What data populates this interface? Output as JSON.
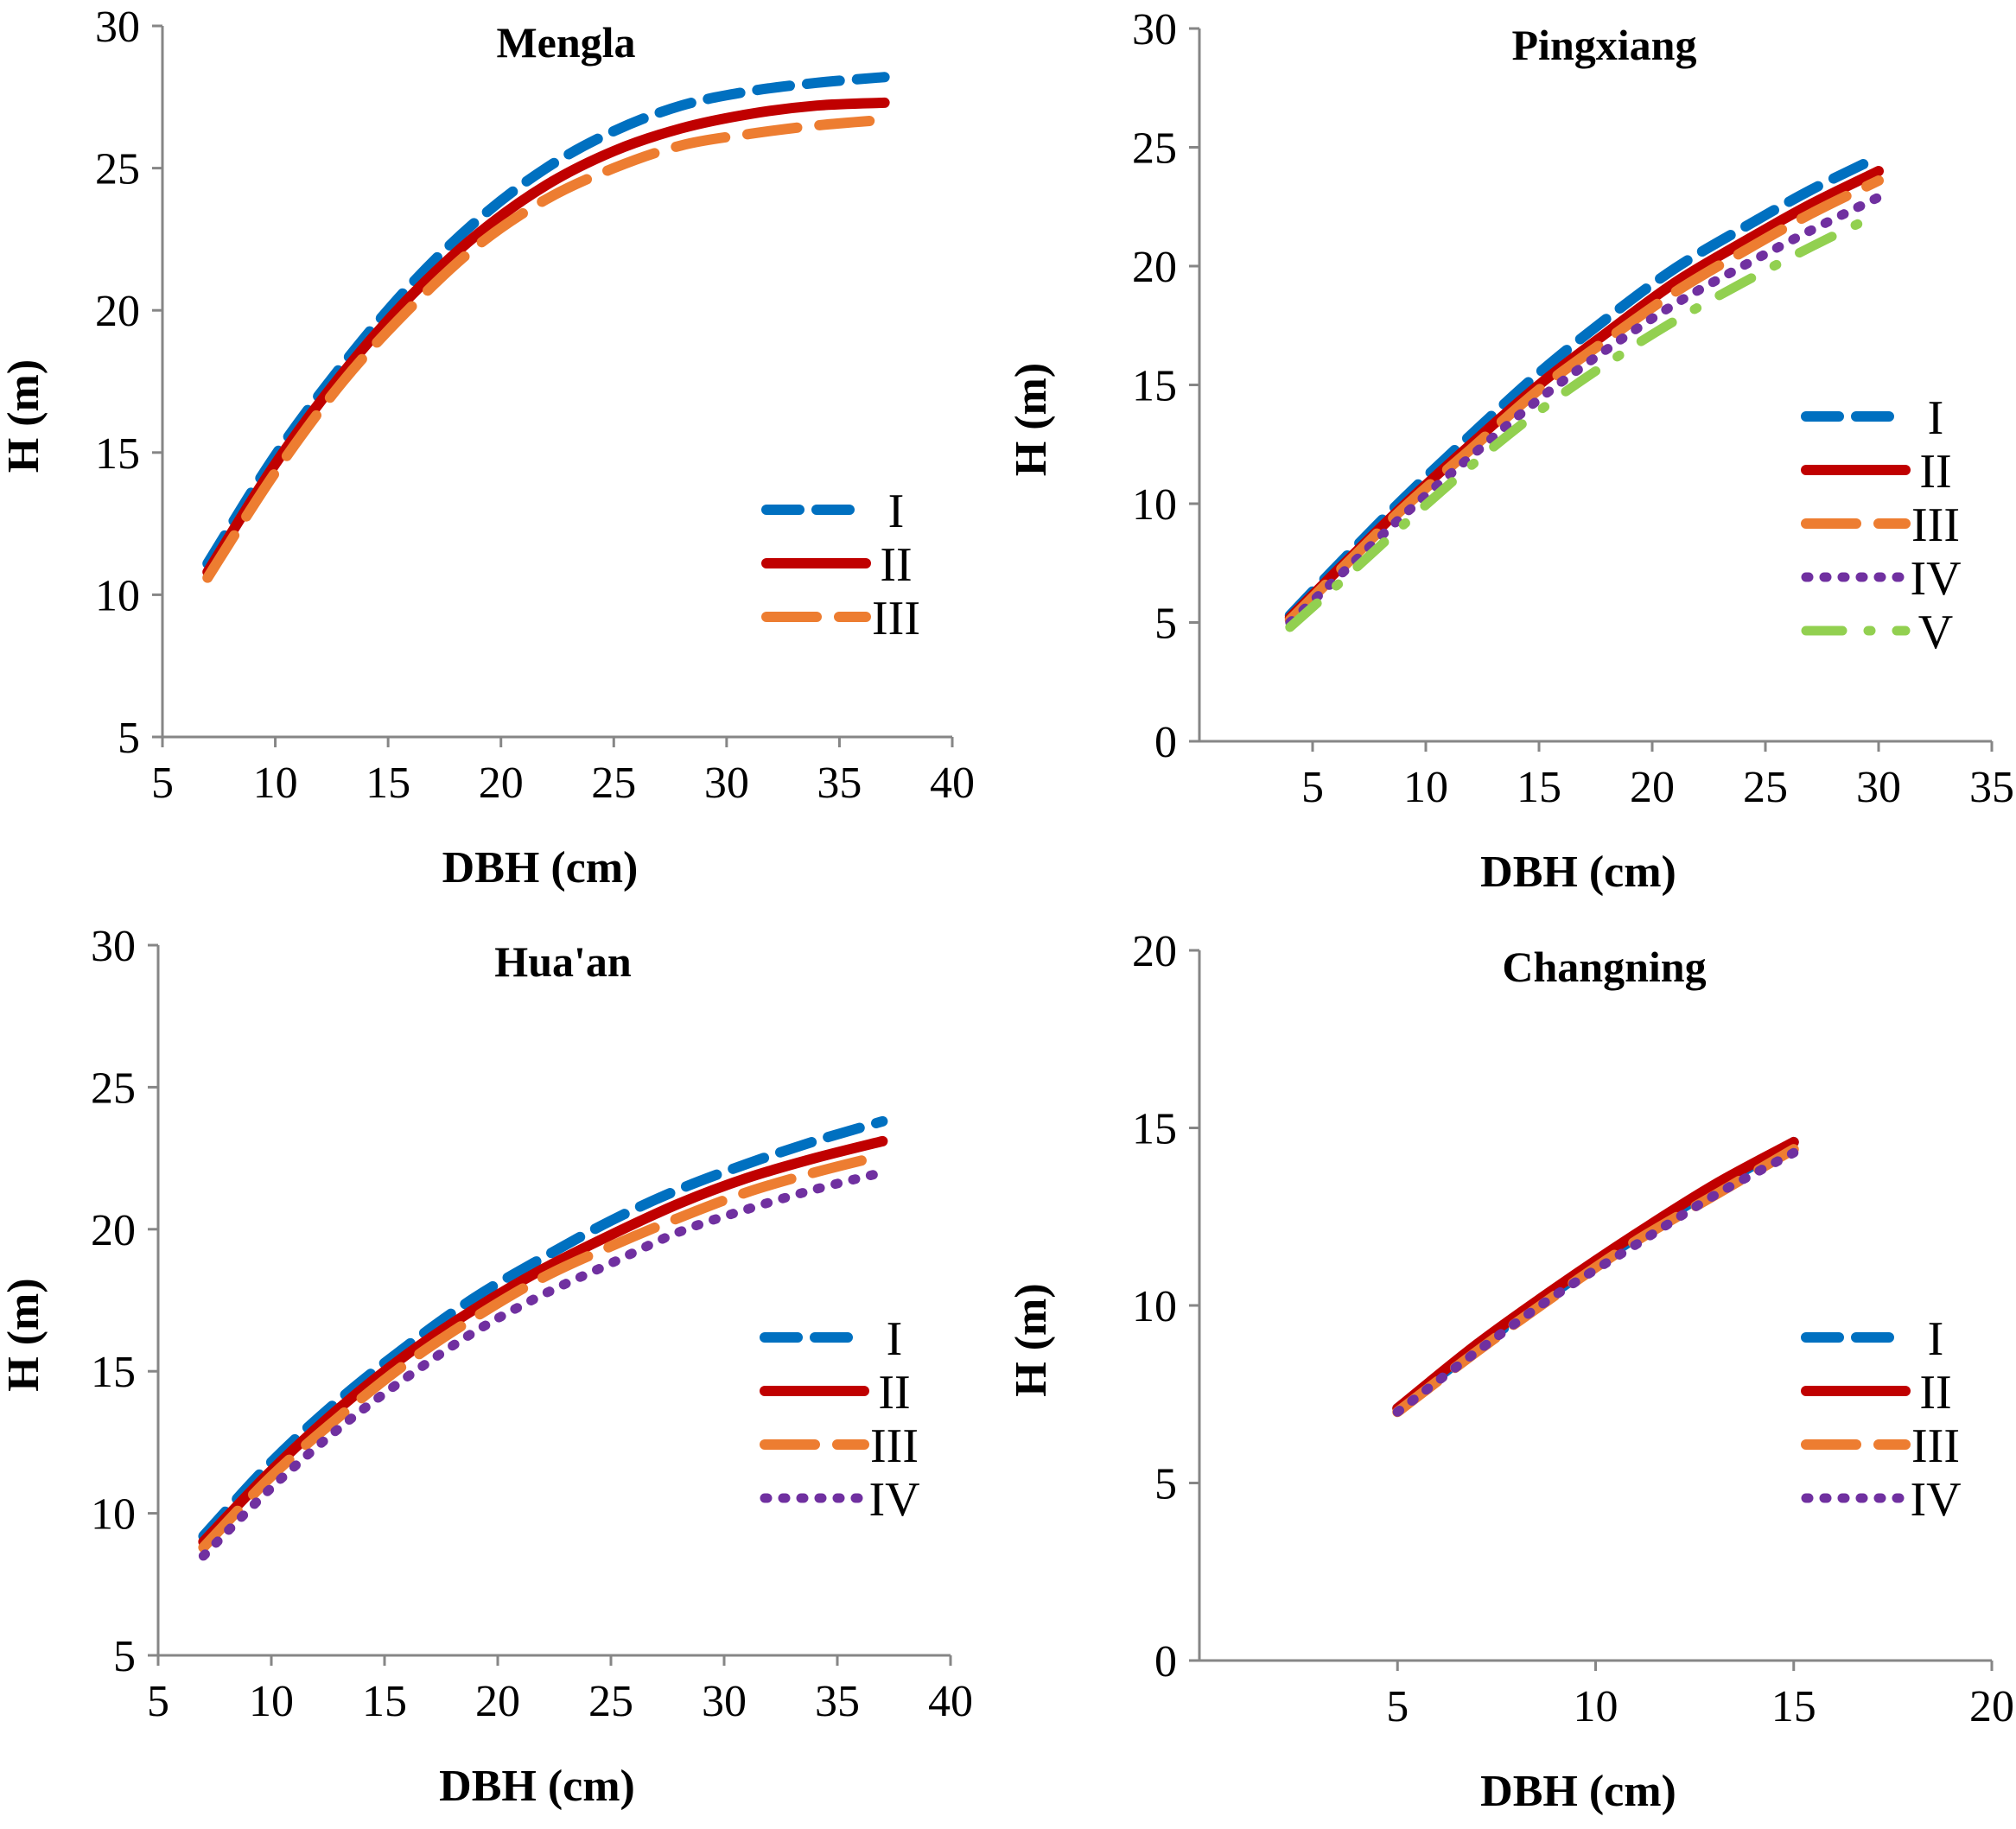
{
  "chart_data": [
    {
      "type": "line",
      "title": "Mengla",
      "xlabel": "DBH (cm)",
      "ylabel": "H (m)",
      "xlim": [
        5,
        40
      ],
      "ylim": [
        5,
        30
      ],
      "xticks": [
        5,
        10,
        15,
        20,
        25,
        30,
        35,
        40
      ],
      "yticks": [
        5,
        10,
        15,
        20,
        25,
        30
      ],
      "xtick_labels": [
        "5",
        "10",
        "15",
        "20",
        "25",
        "30",
        "35",
        "40"
      ],
      "ytick_labels": [
        "5",
        "10",
        "15",
        "20",
        "25",
        "30"
      ],
      "legend_position": "center-right",
      "series": [
        {
          "name": "I",
          "color": "#0070C0",
          "style": "dashed",
          "x": [
            7,
            10,
            13,
            16,
            19,
            22,
            25,
            28,
            31,
            34,
            37
          ],
          "y": [
            11.1,
            14.9,
            18.1,
            20.9,
            23.2,
            25.0,
            26.3,
            27.2,
            27.7,
            28.0,
            28.2
          ]
        },
        {
          "name": "II",
          "color": "#C00000",
          "style": "solid",
          "x": [
            7,
            10,
            13,
            16,
            19,
            22,
            25,
            28,
            31,
            34,
            37
          ],
          "y": [
            10.8,
            14.6,
            17.8,
            20.5,
            22.7,
            24.4,
            25.6,
            26.4,
            26.9,
            27.2,
            27.3
          ]
        },
        {
          "name": "III",
          "color": "#ED7D31",
          "style": "longdash",
          "x": [
            7,
            10,
            13,
            16,
            19,
            22,
            25,
            28,
            31,
            34,
            37
          ],
          "y": [
            10.6,
            14.3,
            17.5,
            20.1,
            22.3,
            23.9,
            25.0,
            25.8,
            26.2,
            26.5,
            26.7
          ]
        }
      ]
    },
    {
      "type": "line",
      "title": "Pingxiang",
      "xlabel": "DBH (cm)",
      "ylabel": "H (m)",
      "xlim": [
        0,
        35
      ],
      "ylim": [
        0,
        30
      ],
      "xticks": [
        5,
        10,
        15,
        20,
        25,
        30,
        35
      ],
      "yticks": [
        0,
        5,
        10,
        15,
        20,
        25,
        30
      ],
      "xtick_labels": [
        "5",
        "10",
        "15",
        "20",
        "25",
        "30",
        "35"
      ],
      "ytick_labels": [
        "0",
        "5",
        "10",
        "15",
        "20",
        "25",
        "30"
      ],
      "legend_position": "center-right",
      "series": [
        {
          "name": "I",
          "color": "#0070C0",
          "style": "dashed",
          "x": [
            4,
            6,
            9,
            12,
            15,
            18,
            21,
            24,
            27,
            30
          ],
          "y": [
            5.3,
            7.3,
            10.2,
            12.9,
            15.5,
            17.8,
            19.9,
            21.6,
            23.2,
            24.6
          ]
        },
        {
          "name": "II",
          "color": "#C00000",
          "style": "solid",
          "x": [
            4,
            6,
            9,
            12,
            15,
            18,
            21,
            24,
            27,
            30
          ],
          "y": [
            5.2,
            7.1,
            9.9,
            12.5,
            15.0,
            17.2,
            19.3,
            21.0,
            22.6,
            24.0
          ]
        },
        {
          "name": "III",
          "color": "#ED7D31",
          "style": "longdash",
          "x": [
            4,
            6,
            9,
            12,
            15,
            18,
            21,
            24,
            27,
            30
          ],
          "y": [
            5.1,
            7.0,
            9.8,
            12.3,
            14.8,
            16.9,
            18.9,
            20.6,
            22.2,
            23.6
          ]
        },
        {
          "name": "IV",
          "color": "#7030A0",
          "style": "dotted",
          "x": [
            4,
            6,
            9,
            12,
            15,
            18,
            21,
            24,
            27,
            30
          ],
          "y": [
            5.0,
            6.8,
            9.5,
            12.0,
            14.4,
            16.5,
            18.4,
            20.0,
            21.5,
            22.9
          ]
        },
        {
          "name": "V",
          "color": "#92D050",
          "style": "dashdot",
          "x": [
            4,
            6,
            9,
            12,
            15,
            18,
            21,
            24,
            27,
            30
          ],
          "y": [
            4.8,
            6.5,
            9.1,
            11.6,
            13.9,
            15.9,
            17.7,
            19.3,
            20.8,
            22.2
          ]
        }
      ]
    },
    {
      "type": "line",
      "title": "Hua'an",
      "xlabel": "DBH (cm)",
      "ylabel": "H (m)",
      "xlim": [
        5,
        40
      ],
      "ylim": [
        5,
        30
      ],
      "xticks": [
        5,
        10,
        15,
        20,
        25,
        30,
        35,
        40
      ],
      "yticks": [
        5,
        10,
        15,
        20,
        25,
        30
      ],
      "xtick_labels": [
        "5",
        "10",
        "15",
        "20",
        "25",
        "30",
        "35",
        "40"
      ],
      "ytick_labels": [
        "5",
        "10",
        "15",
        "20",
        "25",
        "30"
      ],
      "legend_position": "center-right",
      "series": [
        {
          "name": "I",
          "color": "#0070C0",
          "style": "dashed",
          "x": [
            7,
            10,
            13,
            16,
            19,
            22,
            25,
            28,
            31,
            34,
            37
          ],
          "y": [
            9.2,
            11.8,
            14.0,
            15.9,
            17.6,
            19.0,
            20.3,
            21.4,
            22.3,
            23.1,
            23.8
          ]
        },
        {
          "name": "II",
          "color": "#C00000",
          "style": "solid",
          "x": [
            7,
            10,
            13,
            16,
            19,
            22,
            25,
            28,
            31,
            34,
            37
          ],
          "y": [
            9.0,
            11.5,
            13.7,
            15.6,
            17.2,
            18.6,
            19.8,
            20.9,
            21.8,
            22.5,
            23.1
          ]
        },
        {
          "name": "III",
          "color": "#ED7D31",
          "style": "longdash",
          "x": [
            7,
            10,
            13,
            16,
            19,
            22,
            25,
            28,
            31,
            34,
            37
          ],
          "y": [
            8.8,
            11.3,
            13.4,
            15.3,
            16.9,
            18.3,
            19.4,
            20.4,
            21.3,
            22.0,
            22.6
          ]
        },
        {
          "name": "IV",
          "color": "#7030A0",
          "style": "dotted",
          "x": [
            7,
            10,
            13,
            16,
            19,
            22,
            25,
            28,
            31,
            34,
            37
          ],
          "y": [
            8.5,
            10.9,
            13.0,
            14.8,
            16.4,
            17.7,
            18.8,
            19.9,
            20.7,
            21.4,
            22.0
          ]
        }
      ]
    },
    {
      "type": "line",
      "title": "Changning",
      "xlabel": "DBH (cm)",
      "ylabel": "H (m)",
      "xlim": [
        0,
        20
      ],
      "ylim": [
        0,
        20
      ],
      "xticks": [
        5,
        10,
        15,
        20
      ],
      "yticks": [
        0,
        5,
        10,
        15,
        20
      ],
      "xtick_labels": [
        "5",
        "10",
        "15",
        "20"
      ],
      "ytick_labels": [
        "0",
        "5",
        "10",
        "15",
        "20"
      ],
      "legend_position": "center-right",
      "series": [
        {
          "name": "I",
          "color": "#0070C0",
          "style": "dashed",
          "x": [
            5,
            7,
            9,
            11,
            13,
            15
          ],
          "y": [
            7.1,
            8.8,
            10.4,
            11.9,
            13.3,
            14.6
          ]
        },
        {
          "name": "II",
          "color": "#C00000",
          "style": "solid",
          "x": [
            5,
            7,
            9,
            11,
            13,
            15
          ],
          "y": [
            7.1,
            8.9,
            10.5,
            12.0,
            13.4,
            14.6
          ]
        },
        {
          "name": "III",
          "color": "#ED7D31",
          "style": "longdash",
          "x": [
            5,
            7,
            9,
            11,
            13,
            15
          ],
          "y": [
            7.0,
            8.7,
            10.3,
            11.8,
            13.1,
            14.4
          ]
        },
        {
          "name": "IV",
          "color": "#7030A0",
          "style": "dotted",
          "x": [
            5,
            7,
            9,
            11,
            13,
            15
          ],
          "y": [
            7.0,
            8.7,
            10.3,
            11.7,
            13.1,
            14.3
          ]
        }
      ]
    }
  ]
}
